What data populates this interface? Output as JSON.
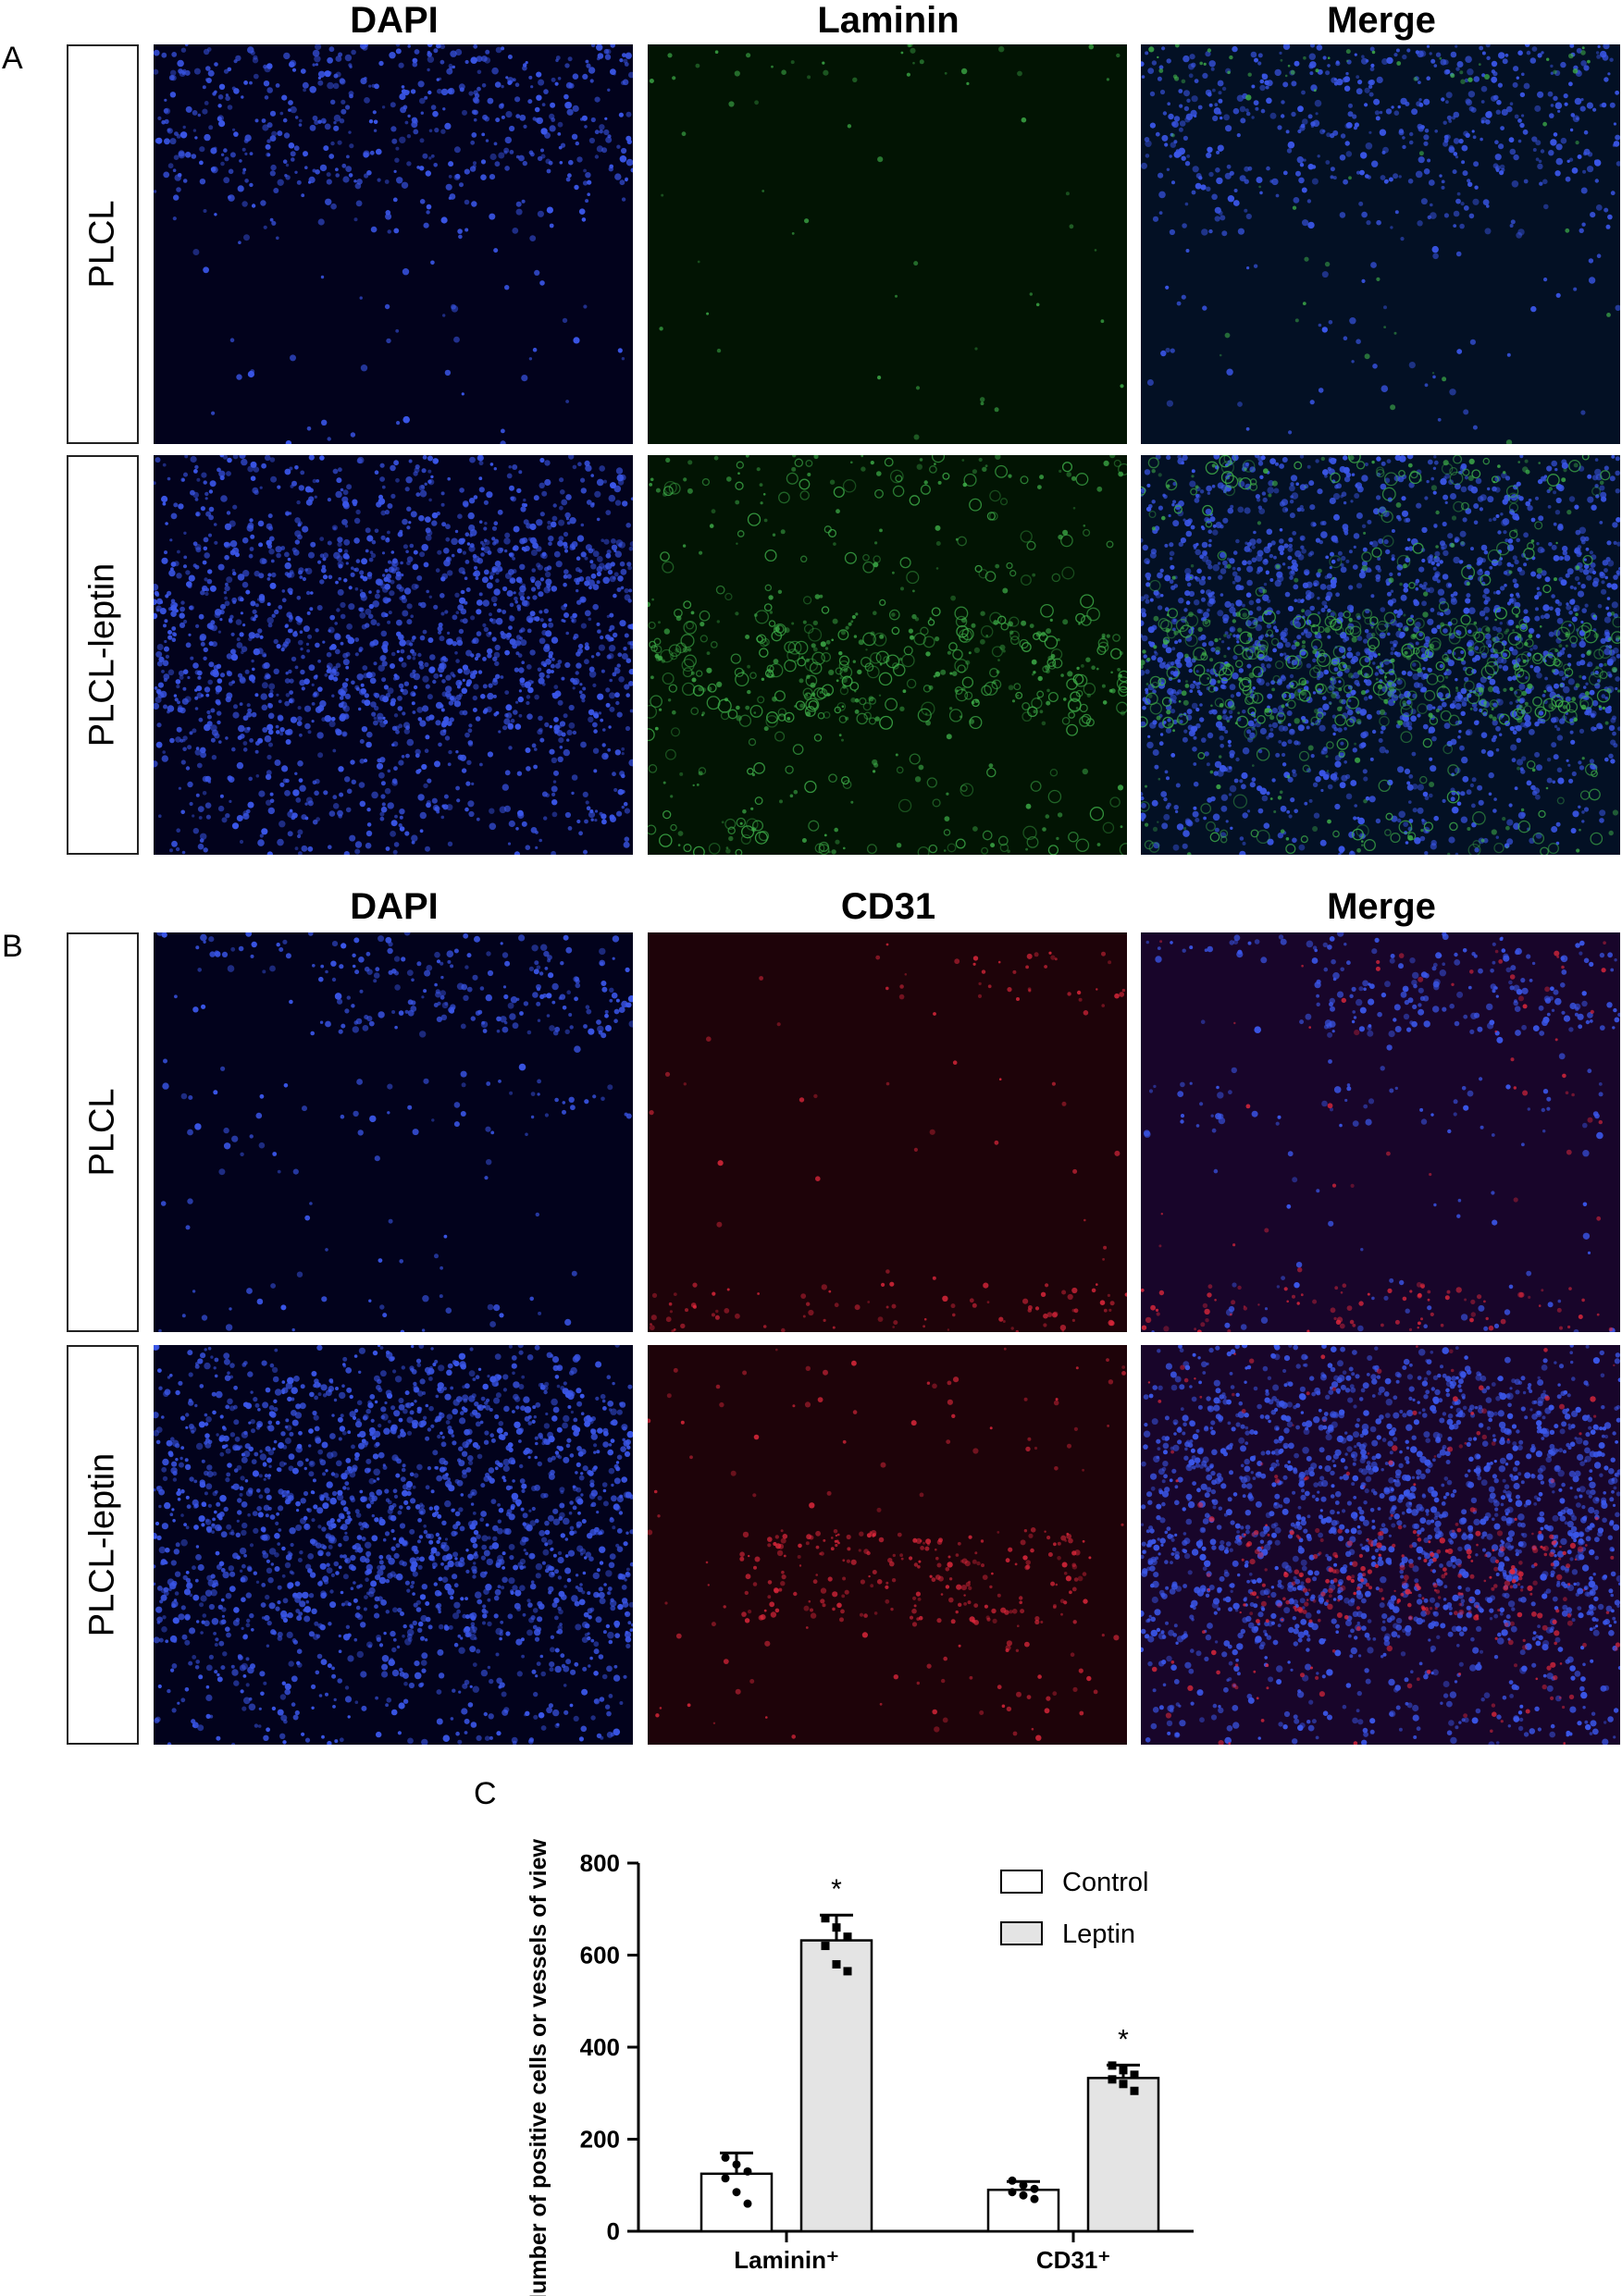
{
  "panel_a": {
    "letter": "A",
    "columns": [
      "DAPI",
      "Laminin",
      "Merge"
    ],
    "rows": [
      "PLCL",
      "PLCL-leptin"
    ]
  },
  "panel_b": {
    "letter": "B",
    "columns": [
      "DAPI",
      "CD31",
      "Merge"
    ],
    "rows": [
      "PLCL",
      "PLCL-leptin"
    ]
  },
  "panel_c": {
    "letter": "C"
  },
  "colors": {
    "dapi": "#3a56e8",
    "laminin": "#3fb04a",
    "cd31": "#e0283c",
    "control_fill": "#ffffff",
    "leptin_fill": "#e4e4e4"
  },
  "chart_data": {
    "type": "bar",
    "categories": [
      "Laminin⁺",
      "CD31⁺"
    ],
    "ylabel": "Number of positive cells or vessels of view",
    "xlabel": "",
    "ylim": [
      0,
      800
    ],
    "yticks": [
      0,
      200,
      400,
      600,
      800
    ],
    "legend": "top-right",
    "significance_marker": "*",
    "series": [
      {
        "name": "Control",
        "values": [
          125,
          90
        ],
        "errors": [
          45,
          18
        ],
        "points": [
          [
            160,
            145,
            130,
            115,
            85,
            60
          ],
          [
            110,
            100,
            92,
            85,
            78,
            70
          ]
        ],
        "significant": [
          false,
          false
        ]
      },
      {
        "name": "Leptin",
        "values": [
          632,
          333
        ],
        "errors": [
          55,
          28
        ],
        "points": [
          [
            680,
            660,
            640,
            620,
            580,
            565
          ],
          [
            360,
            350,
            340,
            330,
            320,
            305
          ]
        ],
        "significant": [
          true,
          true
        ]
      }
    ]
  }
}
